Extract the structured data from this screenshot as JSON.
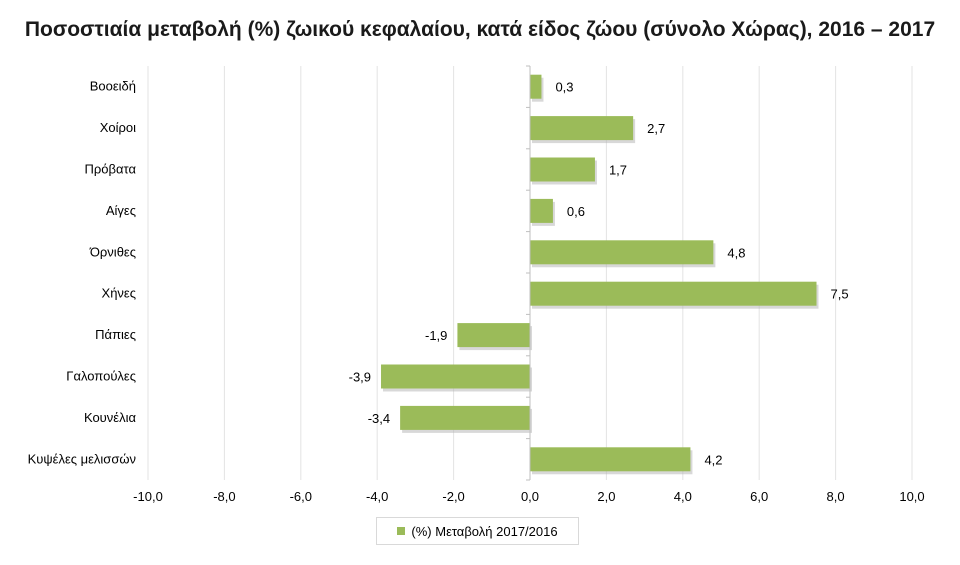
{
  "chart_data": {
    "type": "bar",
    "orientation": "horizontal",
    "title": "Ποσοστιαία μεταβολή (%) ζωικού κεφαλαίου, κατά είδος ζώου (σύνολο Χώρας), 2016 – 2017",
    "categories": [
      "Βοοειδή",
      "Χοίροι",
      "Πρόβατα",
      "Αίγες",
      "Όρνιθες",
      "Χήνες",
      "Πάπιες",
      "Γαλοπούλες",
      "Κουνέλια",
      "Κυψέλες μελισσών"
    ],
    "series": [
      {
        "name": "(%) Μεταβολή 2017/2016",
        "values": [
          0.3,
          2.7,
          1.7,
          0.6,
          4.8,
          7.5,
          -1.9,
          -3.9,
          -3.4,
          4.2
        ],
        "labels": [
          "0,3",
          "2,7",
          "1,7",
          "0,6",
          "4,8",
          "7,5",
          "-1,9",
          "-3,9",
          "-3,4",
          "4,2"
        ],
        "color": "#9bbb59"
      }
    ],
    "xlim": [
      -10,
      10
    ],
    "xticks": [
      -10,
      -8,
      -6,
      -4,
      -2,
      0,
      2,
      4,
      6,
      8,
      10
    ],
    "xtick_labels": [
      "-10,0",
      "-8,0",
      "-6,0",
      "-4,0",
      "-2,0",
      "0,0",
      "2,0",
      "4,0",
      "6,0",
      "8,0",
      "10,0"
    ],
    "grid": true,
    "legend_position": "bottom"
  }
}
